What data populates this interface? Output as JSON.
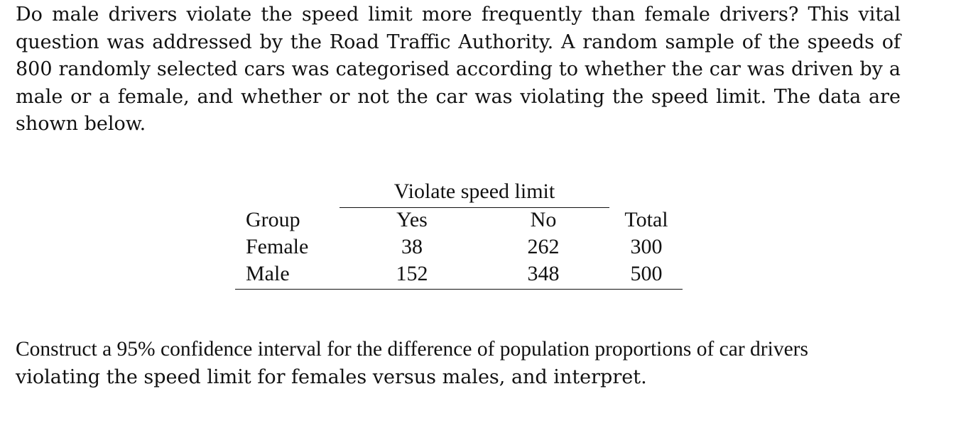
{
  "problem": {
    "intro_text": "Do male drivers violate the speed limit more frequently than female drivers? This vital question was addressed by the Road Traffic Authority. A random sample of the speeds of 800 randomly selected cars was categorised according to whether the car was driven by a male or a female, and whether or not the car was violating the speed limit. The data are shown below.",
    "question_line1": "Construct a 95% confidence interval for the difference of population proportions of car drivers",
    "question_line2": "violating the speed limit for females versus males, and interpret."
  },
  "table": {
    "spanner": "Violate speed limit",
    "headers": {
      "group": "Group",
      "yes": "Yes",
      "no": "No",
      "total": "Total"
    },
    "rows": [
      {
        "group": "Female",
        "yes": "38",
        "no": "262",
        "total": "300"
      },
      {
        "group": "Male",
        "yes": "152",
        "no": "348",
        "total": "500"
      }
    ]
  }
}
